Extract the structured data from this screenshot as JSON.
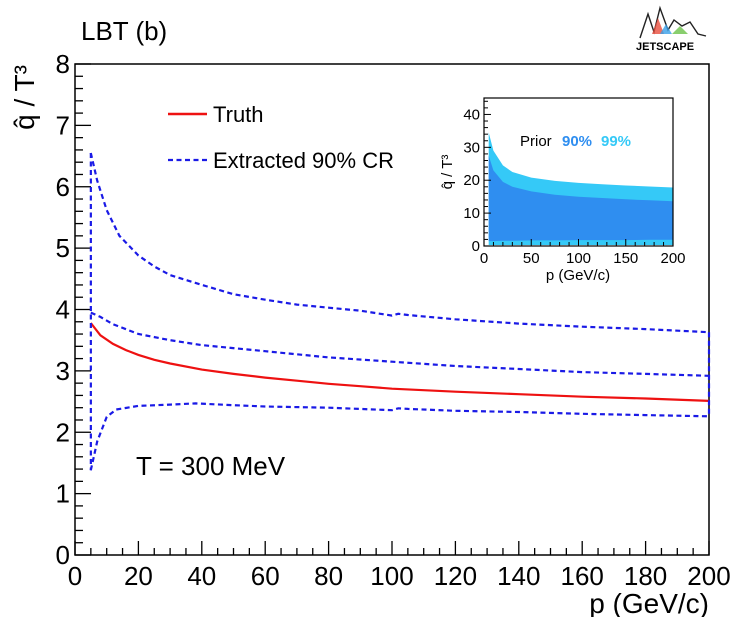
{
  "panel_label": "LBT (b)",
  "logo_text": "JETSCAPE",
  "annotation": "T = 300 MeV",
  "colors": {
    "truth": "#ee1111",
    "extracted": "#1a1ae6",
    "prior90": "#2f8ef0",
    "prior99": "#35c9f7"
  },
  "chart_data": [
    {
      "type": "line",
      "title": "LBT (b)",
      "xlabel": "p (GeV/c)",
      "ylabel": "q̂ / T³",
      "xlim": [
        0,
        200
      ],
      "ylim": [
        0,
        8
      ],
      "xticks": [
        0,
        20,
        40,
        60,
        80,
        100,
        120,
        140,
        160,
        180,
        200
      ],
      "yticks": [
        0,
        1,
        2,
        3,
        4,
        5,
        6,
        7,
        8
      ],
      "legend": [
        {
          "label": "Truth",
          "style": "solid",
          "color": "#ee1111"
        },
        {
          "label": "Extracted 90% CR",
          "style": "dashed",
          "color": "#1a1ae6"
        }
      ],
      "annotation": "T = 300 MeV",
      "series": [
        {
          "name": "Truth",
          "x": [
            5,
            8,
            12,
            16,
            20,
            25,
            30,
            40,
            50,
            60,
            70,
            80,
            90,
            100,
            120,
            140,
            160,
            180,
            200
          ],
          "y": [
            3.78,
            3.58,
            3.44,
            3.34,
            3.26,
            3.18,
            3.12,
            3.02,
            2.95,
            2.89,
            2.84,
            2.79,
            2.75,
            2.71,
            2.66,
            2.62,
            2.58,
            2.55,
            2.51
          ]
        },
        {
          "name": "Extracted 90% CR upper",
          "x": [
            5,
            7,
            10,
            14,
            20,
            25,
            30,
            40,
            50,
            60,
            70,
            80,
            90,
            100,
            102,
            105,
            120,
            140,
            160,
            180,
            200
          ],
          "y": [
            6.55,
            6.1,
            5.62,
            5.2,
            4.88,
            4.7,
            4.56,
            4.4,
            4.25,
            4.16,
            4.08,
            4.03,
            3.98,
            3.9,
            3.93,
            3.91,
            3.84,
            3.77,
            3.72,
            3.68,
            3.63
          ]
        },
        {
          "name": "Extracted 90% CR median",
          "x": [
            5,
            8,
            12,
            20,
            30,
            40,
            60,
            80,
            100,
            120,
            140,
            160,
            180,
            200
          ],
          "y": [
            3.95,
            3.88,
            3.76,
            3.6,
            3.5,
            3.42,
            3.32,
            3.22,
            3.15,
            3.08,
            3.03,
            2.98,
            2.95,
            2.92
          ]
        },
        {
          "name": "Extracted 90% CR lower",
          "x": [
            5,
            7,
            10,
            13,
            20,
            30,
            38,
            50,
            60,
            80,
            100,
            102,
            105,
            120,
            140,
            160,
            180,
            200
          ],
          "y": [
            1.38,
            1.85,
            2.25,
            2.37,
            2.43,
            2.45,
            2.47,
            2.44,
            2.42,
            2.4,
            2.36,
            2.39,
            2.38,
            2.35,
            2.33,
            2.3,
            2.28,
            2.26
          ]
        }
      ]
    },
    {
      "type": "area",
      "title": "Prior 90% 99%",
      "xlabel": "p (GeV/c)",
      "ylabel": "q̂ / T³",
      "xlim": [
        0,
        200
      ],
      "ylim": [
        0,
        45
      ],
      "xticks": [
        0,
        50,
        100,
        150,
        200
      ],
      "yticks": [
        0,
        10,
        20,
        30,
        40
      ],
      "legend_title": "Prior",
      "legend_entries": [
        "90%",
        "99%"
      ],
      "series": [
        {
          "name": "90%",
          "x": [
            5,
            10,
            20,
            30,
            50,
            75,
            100,
            125,
            150,
            175,
            200
          ],
          "upper": [
            27.5,
            23.0,
            19.5,
            18.0,
            16.6,
            15.6,
            15.0,
            14.6,
            14.2,
            13.9,
            13.6
          ],
          "lower": [
            1.5,
            1.5,
            1.6,
            1.6,
            1.7,
            1.7,
            1.8,
            1.8,
            1.8,
            1.9,
            1.9
          ]
        },
        {
          "name": "99%",
          "x": [
            5,
            10,
            20,
            30,
            50,
            75,
            100,
            125,
            150,
            175,
            200
          ],
          "upper": [
            34.5,
            29.0,
            24.5,
            22.5,
            20.8,
            19.8,
            19.2,
            18.8,
            18.4,
            18.1,
            17.8
          ],
          "lower": [
            0.3,
            0.3,
            0.3,
            0.3,
            0.3,
            0.3,
            0.3,
            0.3,
            0.3,
            0.3,
            0.3
          ]
        }
      ]
    }
  ]
}
